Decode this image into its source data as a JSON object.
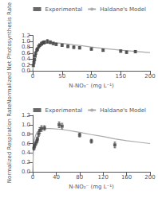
{
  "chart_data": [
    {
      "type": "line",
      "xlabel": "N-NO₃⁻ (mg L⁻¹)",
      "ylabel": "Normalized Net Photosynthesis Rate",
      "xlim": [
        0,
        200
      ],
      "ylim": [
        0,
        1.2
      ],
      "xticks": [
        0,
        50,
        100,
        150,
        200
      ],
      "yticks": [
        {
          "value": 0,
          "label": "0.0"
        },
        0.2,
        0.4,
        0.6,
        0.8,
        {
          "value": 1,
          "label": "1.0"
        },
        1.2
      ],
      "grid": false,
      "legend": "upper right",
      "series": [
        {
          "name": "Experimental",
          "type": "scatter",
          "marker": "square",
          "color": "#444444",
          "x": [
            1,
            2,
            3,
            4,
            5,
            7,
            8,
            10,
            12,
            15,
            18,
            20,
            25,
            30,
            35,
            40,
            50,
            60,
            70,
            80,
            100,
            120,
            150,
            160,
            175
          ],
          "values": [
            0.18,
            0.28,
            0.38,
            0.5,
            0.6,
            0.7,
            0.74,
            0.82,
            0.87,
            0.92,
            0.96,
            0.97,
            1.0,
            0.97,
            0.93,
            0.9,
            0.87,
            0.83,
            0.8,
            0.78,
            0.74,
            0.7,
            0.67,
            0.63,
            0.65
          ],
          "yerr": [
            0.03,
            0.03,
            0.03,
            0.03,
            0.04,
            0.04,
            0.04,
            0.05,
            0.05,
            0.06,
            0.05,
            0.05,
            0.06,
            0.05,
            0.04,
            0.04,
            0.04,
            0.04,
            0.04,
            0.04,
            0.04,
            0.04,
            0.04,
            0.04,
            0.04
          ]
        },
        {
          "name": "Haldane's Model",
          "type": "line",
          "line_style": "solid",
          "color": "#aaaaaa",
          "x": [
            0,
            1,
            2,
            3,
            4,
            5,
            6,
            7,
            8,
            10,
            12,
            15,
            20,
            25,
            30,
            40,
            50,
            60,
            70,
            80,
            100,
            120,
            150,
            175,
            200
          ],
          "values": [
            0.0,
            0.18,
            0.32,
            0.44,
            0.54,
            0.62,
            0.68,
            0.73,
            0.77,
            0.82,
            0.86,
            0.89,
            0.92,
            0.94,
            0.95,
            0.95,
            0.93,
            0.91,
            0.88,
            0.86,
            0.81,
            0.76,
            0.7,
            0.66,
            0.62
          ]
        }
      ]
    },
    {
      "type": "line",
      "xlabel": "N-NO₂⁻ (mg L⁻¹)",
      "ylabel": "Normalized Respiration Rate",
      "xlim": [
        0,
        200
      ],
      "ylim": [
        0,
        1.2
      ],
      "xticks": [
        0,
        40,
        80,
        120,
        160,
        200
      ],
      "yticks": [
        {
          "value": 0,
          "label": "0.0"
        },
        0.2,
        0.4,
        0.6,
        0.8,
        {
          "value": 1,
          "label": "1.0"
        },
        1.2
      ],
      "grid": false,
      "legend": "upper right",
      "series": [
        {
          "name": "Experimental",
          "type": "scatter",
          "marker": "square",
          "color": "#444444",
          "x": [
            2,
            3,
            5,
            7,
            8,
            10,
            12,
            15,
            20,
            45,
            50,
            80,
            100,
            140
          ],
          "values": [
            0.5,
            0.55,
            0.6,
            0.65,
            0.7,
            0.8,
            0.88,
            0.92,
            0.93,
            1.0,
            0.97,
            0.78,
            0.65,
            0.57
          ],
          "yerr": [
            0.04,
            0.04,
            0.04,
            0.04,
            0.04,
            0.05,
            0.06,
            0.06,
            0.05,
            0.06,
            0.06,
            0.04,
            0.04,
            0.06
          ]
        },
        {
          "name": "Haldane's Model",
          "type": "line",
          "line_style": "solid",
          "color": "#aaaaaa",
          "x": [
            0,
            1,
            2,
            3,
            5,
            7,
            10,
            12,
            15,
            20,
            30,
            50,
            80,
            100,
            120,
            140,
            160,
            180,
            200
          ],
          "values": [
            0.0,
            0.42,
            0.6,
            0.7,
            0.78,
            0.83,
            0.87,
            0.89,
            0.91,
            0.92,
            0.92,
            0.9,
            0.84,
            0.79,
            0.75,
            0.7,
            0.66,
            0.63,
            0.6
          ]
        }
      ]
    }
  ]
}
